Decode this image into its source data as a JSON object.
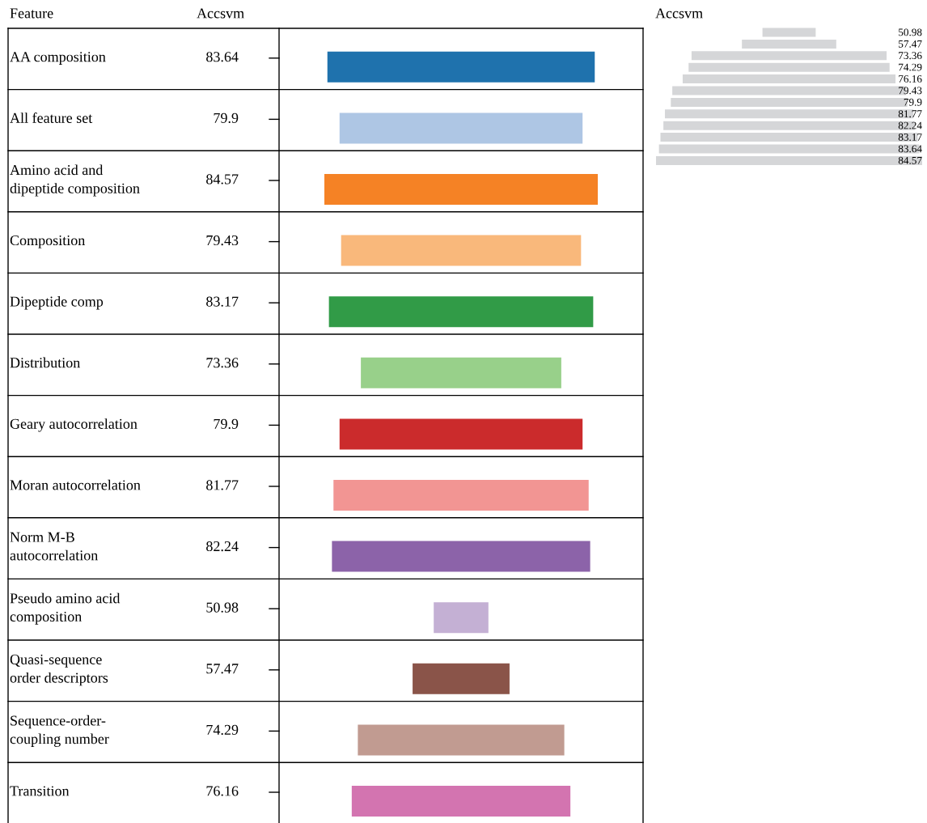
{
  "chart_data": [
    {
      "type": "other",
      "ylabel": "Feature",
      "title": "Accsvm",
      "data_labels": true,
      "categories": [
        "AA composition",
        "All feature set",
        "Amino acid and\ndipeptide composition",
        "Composition",
        "Dipeptide comp",
        "Distribution",
        "Geary autocorrelation",
        "Moran autocorrelation",
        "Norm M-B\nautocorrelation",
        "Pseudo amino acid\ncomposition",
        "Quasi-sequence\norder descriptors",
        "Sequence-order-\ncoupling number",
        "Transition"
      ],
      "values": [
        83.64,
        79.9,
        84.57,
        79.43,
        83.17,
        73.36,
        79.9,
        81.77,
        82.24,
        50.98,
        57.47,
        74.29,
        76.16
      ],
      "colors": [
        "#1f72ad",
        "#aec6e4",
        "#f58225",
        "#f9b87b",
        "#319b47",
        "#98d08a",
        "#cb2b2c",
        "#f29593",
        "#8c63a9",
        "#c4b0d4",
        "#8a5449",
        "#c19b91",
        "#d374b0"
      ]
    },
    {
      "type": "other",
      "title": "Accsvm",
      "data_labels": true,
      "categories": [
        null,
        null,
        null,
        null,
        null,
        null,
        null,
        null,
        null,
        null,
        null,
        null
      ],
      "values": [
        50.98,
        57.47,
        73.36,
        74.29,
        76.16,
        79.43,
        79.9,
        81.77,
        82.24,
        83.17,
        83.64,
        84.57
      ],
      "color": "#d5d6d8"
    }
  ]
}
